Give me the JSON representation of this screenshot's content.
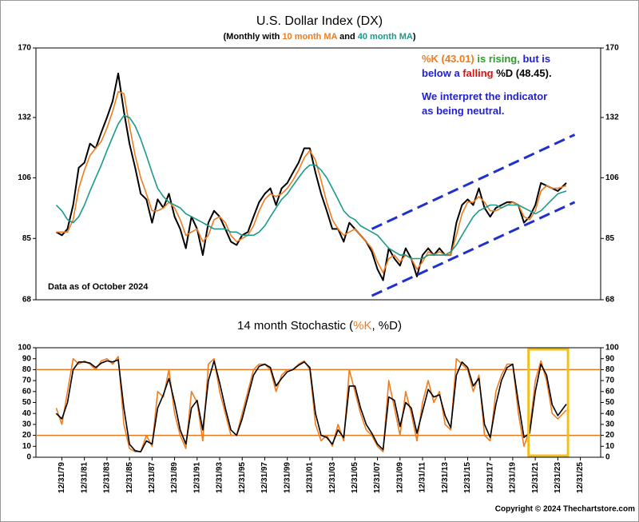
{
  "chart_data": [
    {
      "type": "line",
      "title": "U.S. Dollar Index (DX)",
      "subtitle": [
        "(Monthly with ",
        " and ",
        ")"
      ],
      "log_y": true,
      "xlim": [
        1977.7,
        2027.8
      ],
      "ylim": [
        68,
        170
      ],
      "yticks": [
        68,
        85,
        106,
        132,
        170
      ],
      "note": "Data as of October 2024",
      "annotation_lines": [
        [
          {
            "text": "%K (43.01)",
            "color": "#f07c1e"
          },
          {
            "text": " is rising,",
            "color": "#2a9d2a"
          },
          {
            "text": " but is",
            "color": "#1f1fd0"
          }
        ],
        [
          {
            "text": "below a ",
            "color": "#1f1fd0"
          },
          {
            "text": "falling",
            "color": "#e01010"
          },
          {
            "text": " %D (48.45).",
            "color": "#000000"
          }
        ],
        [
          {
            "text": "We interpret the indicator",
            "color": "#1f1fd0"
          }
        ],
        [
          {
            "text": "as being neutral.",
            "color": "#1f1fd0"
          }
        ]
      ],
      "channel": {
        "color": "#1f2fd0",
        "lines": [
          {
            "x": [
              2007.5,
              2025.5
            ],
            "values": [
              88,
              124
            ]
          },
          {
            "x": [
              2007.5,
              2025.5
            ],
            "values": [
              69,
              97
            ]
          }
        ]
      },
      "x": [
        1979.5,
        1980,
        1980.5,
        1981,
        1981.5,
        1982,
        1982.5,
        1983,
        1983.5,
        1984,
        1984.5,
        1985,
        1985.5,
        1986,
        1986.5,
        1987,
        1987.5,
        1988,
        1988.5,
        1989,
        1989.5,
        1990,
        1990.5,
        1991,
        1991.5,
        1992,
        1992.5,
        1993,
        1993.5,
        1994,
        1994.5,
        1995,
        1995.5,
        1996,
        1996.5,
        1997,
        1997.5,
        1998,
        1998.5,
        1999,
        1999.5,
        2000,
        2000.5,
        2001,
        2001.5,
        2002,
        2002.5,
        2003,
        2003.5,
        2004,
        2004.5,
        2005,
        2005.5,
        2006,
        2006.5,
        2007,
        2007.5,
        2008,
        2008.5,
        2009,
        2009.5,
        2010,
        2010.5,
        2011,
        2011.5,
        2012,
        2012.5,
        2013,
        2013.5,
        2014,
        2014.5,
        2015,
        2015.5,
        2016,
        2016.5,
        2017,
        2017.5,
        2018,
        2018.5,
        2019,
        2019.5,
        2020,
        2020.5,
        2021,
        2021.5,
        2022,
        2022.5,
        2023,
        2023.5,
        2024,
        2024.75
      ],
      "series": [
        {
          "name": "DX",
          "color": "#000000",
          "values": [
            87,
            86,
            88,
            96,
            110,
            112,
            120,
            118,
            125,
            132,
            140,
            155,
            135,
            120,
            110,
            100,
            98,
            90,
            98,
            95,
            100,
            92,
            88,
            82,
            92,
            88,
            80,
            90,
            94,
            92,
            88,
            84,
            83,
            86,
            87,
            92,
            97,
            100,
            102,
            96,
            102,
            104,
            108,
            112,
            118,
            118,
            108,
            100,
            94,
            88,
            88,
            84,
            90,
            88,
            86,
            84,
            81,
            76,
            73,
            82,
            79,
            77,
            82,
            79,
            74,
            80,
            82,
            80,
            82,
            80,
            80,
            90,
            96,
            98,
            96,
            102,
            95,
            92,
            95,
            96,
            97,
            97,
            96,
            90,
            92,
            96,
            104,
            103,
            102,
            101,
            104
          ]
        },
        {
          "name": "10 month MA",
          "color": "#f07c1e",
          "values": [
            87,
            87,
            87,
            91,
            102,
            109,
            115,
            118,
            121,
            127,
            135,
            145,
            144,
            128,
            115,
            106,
            100,
            94,
            94,
            95,
            97,
            95,
            91,
            86,
            87,
            88,
            84,
            86,
            91,
            92,
            90,
            86,
            84,
            85,
            86,
            89,
            94,
            98,
            100,
            99,
            100,
            102,
            105,
            109,
            114,
            117,
            113,
            105,
            97,
            91,
            88,
            86,
            87,
            88,
            86,
            84,
            82,
            78,
            75,
            79,
            80,
            78,
            80,
            79,
            76,
            78,
            81,
            80,
            81,
            80,
            80,
            86,
            93,
            97,
            97,
            99,
            97,
            94,
            94,
            95,
            96,
            97,
            96,
            92,
            91,
            94,
            101,
            103,
            102,
            102,
            103
          ]
        },
        {
          "name": "40 month MA",
          "color": "#1a9a8a",
          "values": [
            96,
            94,
            91,
            90,
            92,
            96,
            101,
            106,
            111,
            117,
            123,
            129,
            133,
            132,
            128,
            122,
            115,
            108,
            102,
            99,
            97,
            96,
            95,
            93,
            92,
            91,
            90,
            89,
            88,
            88,
            88,
            87,
            87,
            86,
            86,
            86,
            87,
            89,
            92,
            95,
            98,
            100,
            103,
            106,
            109,
            111,
            111,
            109,
            106,
            102,
            98,
            94,
            92,
            91,
            89,
            88,
            87,
            86,
            84,
            82,
            81,
            80,
            80,
            79,
            79,
            79,
            80,
            80,
            80,
            80,
            81,
            83,
            86,
            89,
            92,
            94,
            95,
            96,
            96,
            95,
            96,
            96,
            96,
            95,
            94,
            93,
            94,
            96,
            98,
            100,
            101
          ]
        }
      ]
    },
    {
      "type": "line",
      "title": [
        "14 month Stochastic (",
        ", ",
        ")"
      ],
      "xlim": [
        1977.7,
        2027.8
      ],
      "ylim": [
        0,
        100
      ],
      "yticks": [
        0,
        10,
        20,
        30,
        40,
        50,
        60,
        70,
        80,
        90,
        100
      ],
      "reference_lines": [
        80,
        20
      ],
      "reference_color": "#e07a20",
      "highlight": {
        "x": [
          2021.4,
          2024.9
        ],
        "color": "#f0c020"
      },
      "xticks": [
        {
          "value": 1980,
          "label": "12/31/79"
        },
        {
          "value": 1982,
          "label": "12/31/81"
        },
        {
          "value": 1984,
          "label": "12/31/83"
        },
        {
          "value": 1986,
          "label": "12/31/85"
        },
        {
          "value": 1988,
          "label": "12/31/87"
        },
        {
          "value": 1990,
          "label": "12/31/89"
        },
        {
          "value": 1992,
          "label": "12/31/91"
        },
        {
          "value": 1994,
          "label": "12/31/93"
        },
        {
          "value": 1996,
          "label": "12/31/95"
        },
        {
          "value": 1998,
          "label": "12/31/97"
        },
        {
          "value": 2000,
          "label": "12/31/99"
        },
        {
          "value": 2002,
          "label": "12/31/01"
        },
        {
          "value": 2004,
          "label": "12/31/03"
        },
        {
          "value": 2006,
          "label": "12/31/05"
        },
        {
          "value": 2008,
          "label": "12/31/07"
        },
        {
          "value": 2010,
          "label": "12/31/09"
        },
        {
          "value": 2012,
          "label": "12/31/11"
        },
        {
          "value": 2014,
          "label": "12/31/13"
        },
        {
          "value": 2016,
          "label": "12/31/15"
        },
        {
          "value": 2018,
          "label": "12/31/17"
        },
        {
          "value": 2020,
          "label": "12/31/19"
        },
        {
          "value": 2022,
          "label": "12/31/21"
        },
        {
          "value": 2024,
          "label": "12/31/23"
        },
        {
          "value": 2026,
          "label": "12/31/25"
        }
      ],
      "x": [
        1979.5,
        1980,
        1980.5,
        1981,
        1981.5,
        1982,
        1982.5,
        1983,
        1983.5,
        1984,
        1984.5,
        1985,
        1985.5,
        1986,
        1986.5,
        1987,
        1987.5,
        1988,
        1988.5,
        1989,
        1989.5,
        1990,
        1990.5,
        1991,
        1991.5,
        1992,
        1992.5,
        1993,
        1993.5,
        1994,
        1994.5,
        1995,
        1995.5,
        1996,
        1996.5,
        1997,
        1997.5,
        1998,
        1998.5,
        1999,
        1999.5,
        2000,
        2000.5,
        2001,
        2001.5,
        2002,
        2002.5,
        2003,
        2003.5,
        2004,
        2004.5,
        2005,
        2005.5,
        2006,
        2006.5,
        2007,
        2007.5,
        2008,
        2008.5,
        2009,
        2009.5,
        2010,
        2010.5,
        2011,
        2011.5,
        2012,
        2012.5,
        2013,
        2013.5,
        2014,
        2014.5,
        2015,
        2015.5,
        2016,
        2016.5,
        2017,
        2017.5,
        2018,
        2018.5,
        2019,
        2019.5,
        2020,
        2020.5,
        2021,
        2021.5,
        2022,
        2022.5,
        2023,
        2023.5,
        2024,
        2024.75
      ],
      "series": [
        {
          "name": "%K",
          "color": "#f07c1e",
          "values": [
            45,
            30,
            60,
            90,
            85,
            88,
            85,
            80,
            88,
            90,
            85,
            92,
            30,
            8,
            5,
            5,
            20,
            10,
            60,
            55,
            80,
            40,
            20,
            8,
            60,
            50,
            15,
            85,
            90,
            60,
            40,
            20,
            20,
            40,
            60,
            80,
            85,
            85,
            80,
            60,
            75,
            80,
            80,
            85,
            88,
            80,
            30,
            15,
            20,
            10,
            30,
            15,
            80,
            60,
            40,
            25,
            20,
            10,
            5,
            70,
            45,
            20,
            60,
            40,
            15,
            50,
            70,
            50,
            60,
            30,
            25,
            90,
            85,
            80,
            60,
            75,
            20,
            15,
            60,
            75,
            85,
            85,
            40,
            10,
            25,
            70,
            88,
            70,
            40,
            35,
            43.01
          ]
        },
        {
          "name": "%D",
          "color": "#000000",
          "values": [
            40,
            35,
            50,
            80,
            87,
            87,
            86,
            82,
            86,
            88,
            87,
            89,
            45,
            12,
            6,
            5,
            15,
            12,
            45,
            57,
            72,
            50,
            25,
            12,
            45,
            52,
            25,
            70,
            88,
            68,
            45,
            25,
            20,
            35,
            55,
            75,
            83,
            85,
            82,
            65,
            72,
            78,
            80,
            84,
            87,
            82,
            40,
            20,
            18,
            12,
            25,
            18,
            65,
            65,
            45,
            30,
            22,
            12,
            7,
            55,
            52,
            28,
            50,
            45,
            22,
            42,
            62,
            55,
            57,
            38,
            27,
            75,
            87,
            82,
            65,
            72,
            30,
            18,
            48,
            70,
            82,
            85,
            50,
            18,
            22,
            60,
            85,
            75,
            48,
            38,
            48.45
          ]
        }
      ]
    }
  ],
  "copyright": "Copyright © 2024 Thechartstore.com"
}
